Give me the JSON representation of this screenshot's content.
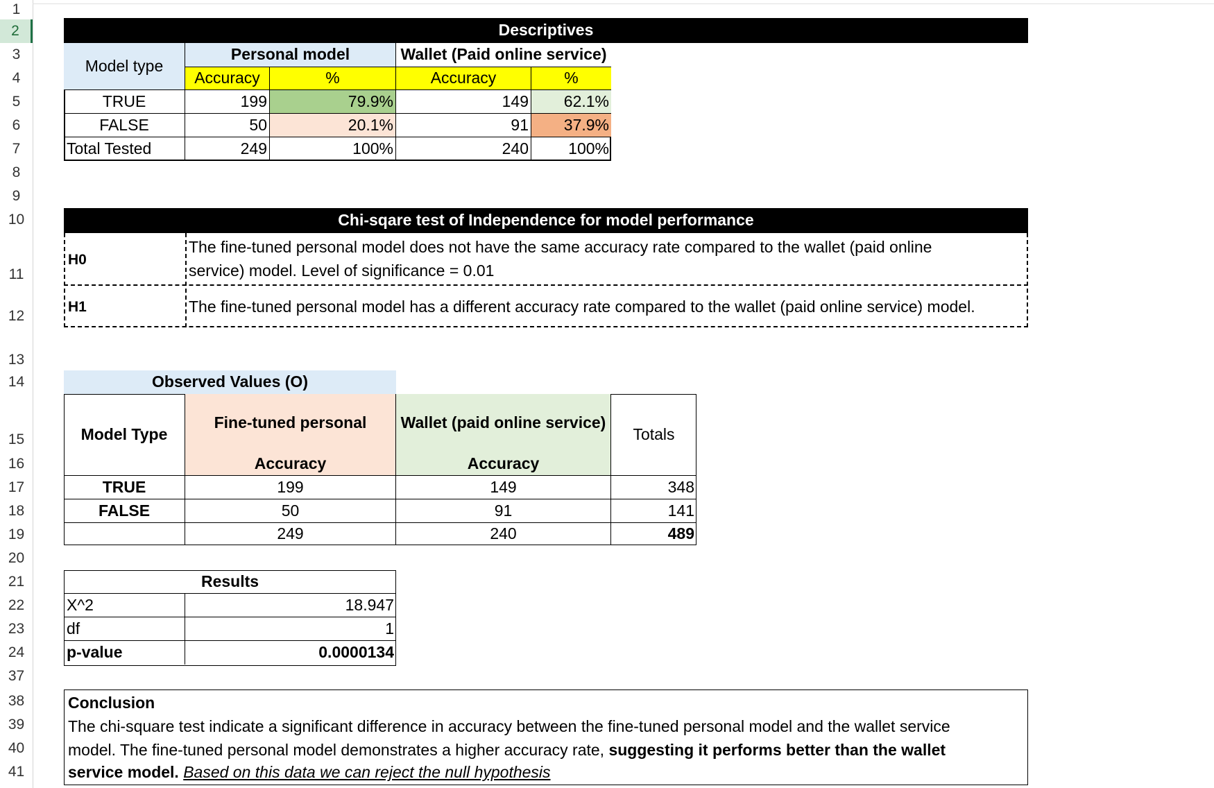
{
  "row_numbers": [
    "1",
    "2",
    "3",
    "4",
    "5",
    "6",
    "7",
    "8",
    "9",
    "10",
    "11",
    "12",
    "13",
    "14",
    "15",
    "16",
    "17",
    "18",
    "19",
    "20",
    "21",
    "22",
    "23",
    "24",
    "37",
    "38",
    "39",
    "40",
    "41"
  ],
  "selected_row": "2",
  "colors": {
    "header_blue": "#ddebf7",
    "yellow": "#ffff00",
    "green_strong": "#a9d08e",
    "green_light": "#e2efda",
    "peach_light": "#fce4d6",
    "orange": "#f4b084",
    "black": "#000000",
    "selected_green": "#1e7145"
  },
  "descriptives": {
    "title": "Descriptives",
    "model_type_label": "Model type",
    "personal_header": "Personal model",
    "wallet_header": "Wallet (Paid online service)",
    "accuracy_label": "Accuracy",
    "percent_label": "%",
    "rows": [
      {
        "label": "TRUE",
        "p_acc": "199",
        "p_pct": "79.9%",
        "w_acc": "149",
        "w_pct": "62.1%"
      },
      {
        "label": "FALSE",
        "p_acc": "50",
        "p_pct": "20.1%",
        "w_acc": "91",
        "w_pct": "37.9%"
      },
      {
        "label": "Total Tested",
        "p_acc": "249",
        "p_pct": "100%",
        "w_acc": "240",
        "w_pct": "100%"
      }
    ]
  },
  "chi_test": {
    "title": "Chi-sqare test of Independence for model performance",
    "h0_label": "H0",
    "h0_line1": "The fine-tuned personal model does not have the same accuracy rate compared to the wallet (paid online",
    "h0_line2": "service) model. Level of significance = 0.01",
    "h1_label": "H1",
    "h1_text": "The fine-tuned personal model has a different accuracy rate compared to the wallet (paid online service) model."
  },
  "observed": {
    "title": "Observed Values (O)",
    "model_type_label": "Model Type",
    "personal_header": "Fine-tuned personal",
    "wallet_header": "Wallet (paid online service)",
    "totals_header": "Totals",
    "accuracy_label": "Accuracy",
    "rows": [
      {
        "label": "TRUE",
        "p": "199",
        "w": "149",
        "t": "348"
      },
      {
        "label": "FALSE",
        "p": "50",
        "w": "91",
        "t": "141"
      },
      {
        "label": "",
        "p": "249",
        "w": "240",
        "t": "489"
      }
    ]
  },
  "results": {
    "title": "Results",
    "rows": [
      {
        "label": "X^2",
        "value": "18.947"
      },
      {
        "label": "df",
        "value": "1"
      },
      {
        "label": "p-value",
        "value": "0.0000134"
      }
    ]
  },
  "conclusion": {
    "title": "Conclusion",
    "line1": "The chi-square test indicate a significant difference in accuracy between the fine-tuned personal model and the wallet service",
    "line2_plain": "model. The fine-tuned personal model demonstrates a higher accuracy rate, ",
    "line2_bold": "suggesting it performs better than the wallet",
    "line3_bold": "service model.",
    "line3_underline": "Based on this data we can reject the null hypothesis"
  }
}
